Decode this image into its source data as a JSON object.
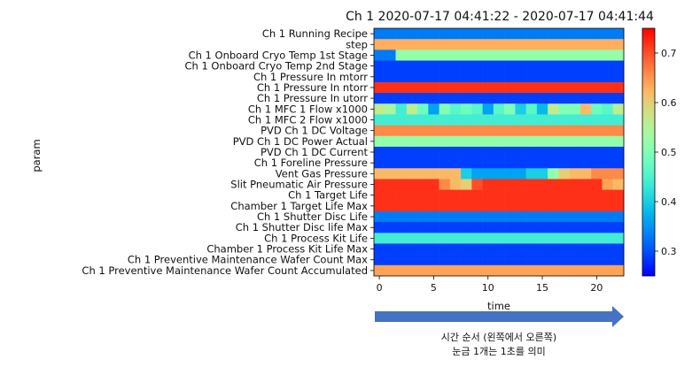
{
  "chart_data": {
    "type": "heatmap",
    "title": "Ch 1 2020-07-17 04:41:22 - 2020-07-17 04:41:44",
    "xlabel": "time",
    "ylabel": "param",
    "x_ticks": [
      0,
      5,
      10,
      15,
      20
    ],
    "x_range": [
      -0.5,
      22.5
    ],
    "colorbar": {
      "colormap": "rainbow",
      "range": [
        0.25,
        0.75
      ],
      "ticks": [
        0.3,
        0.4,
        0.5,
        0.6,
        0.7
      ]
    },
    "rows": [
      "Ch 1 Running Recipe",
      "step",
      "Ch 1 Onboard Cryo Temp 1st Stage",
      "Ch 1 Onboard Cryo Temp 2nd Stage",
      "Ch 1 Pressure In mtorr",
      "Ch 1 Pressure In ntorr",
      "Ch 1 Pressure In utorr",
      "Ch 1 MFC 1 Flow x1000",
      "Ch 1 MFC 2 Flow x1000",
      "PVD Ch 1 DC Voltage",
      "PVD Ch 1 DC Power Actual",
      "PVD Ch 1 DC Current",
      "Ch 1 Foreline Pressure",
      "Vent Gas Pressure",
      "Slit Pneumatic Air Pressure",
      "Ch 1 Target Life",
      "Chamber 1 Target Life Max",
      "Ch 1 Shutter Disc Life",
      "Ch 1 Shutter Disc life Max",
      "Ch 1 Process Kit Life",
      "Chamber 1 Process Kit Life Max",
      "Ch 1 Preventive Maintenance Wafer Count Max",
      "Ch 1 Preventive Maintenance Wafer Count Accumulated"
    ],
    "values": [
      [
        0.33,
        0.33,
        0.33,
        0.33,
        0.33,
        0.33,
        0.33,
        0.33,
        0.33,
        0.33,
        0.33,
        0.33,
        0.33,
        0.33,
        0.33,
        0.33,
        0.33,
        0.33,
        0.33,
        0.33,
        0.33,
        0.33,
        0.33
      ],
      [
        0.63,
        0.63,
        0.63,
        0.63,
        0.63,
        0.63,
        0.63,
        0.63,
        0.63,
        0.63,
        0.63,
        0.63,
        0.63,
        0.63,
        0.63,
        0.63,
        0.63,
        0.63,
        0.63,
        0.63,
        0.63,
        0.63,
        0.63
      ],
      [
        0.33,
        0.33,
        0.52,
        0.52,
        0.52,
        0.52,
        0.52,
        0.52,
        0.52,
        0.52,
        0.52,
        0.52,
        0.52,
        0.52,
        0.52,
        0.52,
        0.52,
        0.52,
        0.52,
        0.52,
        0.52,
        0.52,
        0.52
      ],
      [
        0.29,
        0.29,
        0.29,
        0.29,
        0.29,
        0.29,
        0.29,
        0.29,
        0.29,
        0.29,
        0.29,
        0.29,
        0.29,
        0.29,
        0.29,
        0.29,
        0.29,
        0.29,
        0.29,
        0.29,
        0.29,
        0.29,
        0.29
      ],
      [
        0.29,
        0.29,
        0.29,
        0.29,
        0.29,
        0.29,
        0.29,
        0.29,
        0.29,
        0.29,
        0.29,
        0.29,
        0.29,
        0.29,
        0.29,
        0.29,
        0.29,
        0.29,
        0.29,
        0.29,
        0.29,
        0.29,
        0.29
      ],
      [
        0.72,
        0.72,
        0.72,
        0.72,
        0.72,
        0.72,
        0.72,
        0.72,
        0.72,
        0.72,
        0.72,
        0.72,
        0.72,
        0.72,
        0.72,
        0.72,
        0.72,
        0.72,
        0.72,
        0.72,
        0.72,
        0.72,
        0.72
      ],
      [
        0.29,
        0.29,
        0.29,
        0.29,
        0.29,
        0.29,
        0.29,
        0.29,
        0.29,
        0.29,
        0.29,
        0.29,
        0.29,
        0.29,
        0.29,
        0.29,
        0.29,
        0.29,
        0.29,
        0.29,
        0.29,
        0.29,
        0.29
      ],
      [
        0.56,
        0.54,
        0.44,
        0.56,
        0.48,
        0.36,
        0.5,
        0.46,
        0.48,
        0.46,
        0.36,
        0.46,
        0.5,
        0.4,
        0.46,
        0.38,
        0.56,
        0.5,
        0.5,
        0.62,
        0.48,
        0.46,
        0.56
      ],
      [
        0.44,
        0.44,
        0.44,
        0.44,
        0.44,
        0.44,
        0.44,
        0.44,
        0.44,
        0.44,
        0.44,
        0.44,
        0.44,
        0.44,
        0.44,
        0.44,
        0.44,
        0.44,
        0.44,
        0.44,
        0.44,
        0.44,
        0.44
      ],
      [
        0.66,
        0.66,
        0.66,
        0.66,
        0.66,
        0.66,
        0.66,
        0.66,
        0.66,
        0.66,
        0.66,
        0.66,
        0.66,
        0.66,
        0.66,
        0.66,
        0.66,
        0.66,
        0.66,
        0.66,
        0.66,
        0.66,
        0.66
      ],
      [
        0.52,
        0.52,
        0.52,
        0.52,
        0.52,
        0.52,
        0.52,
        0.52,
        0.52,
        0.52,
        0.52,
        0.52,
        0.52,
        0.52,
        0.52,
        0.52,
        0.52,
        0.52,
        0.52,
        0.52,
        0.52,
        0.52,
        0.52
      ],
      [
        0.29,
        0.29,
        0.29,
        0.29,
        0.29,
        0.29,
        0.29,
        0.29,
        0.29,
        0.29,
        0.29,
        0.29,
        0.29,
        0.29,
        0.29,
        0.29,
        0.29,
        0.29,
        0.29,
        0.29,
        0.29,
        0.29,
        0.29
      ],
      [
        0.29,
        0.29,
        0.29,
        0.29,
        0.29,
        0.29,
        0.29,
        0.29,
        0.29,
        0.29,
        0.29,
        0.29,
        0.29,
        0.29,
        0.29,
        0.29,
        0.29,
        0.29,
        0.29,
        0.29,
        0.29,
        0.29,
        0.29
      ],
      [
        0.62,
        0.62,
        0.62,
        0.62,
        0.62,
        0.62,
        0.62,
        0.62,
        0.4,
        0.36,
        0.36,
        0.36,
        0.36,
        0.36,
        0.4,
        0.4,
        0.52,
        0.6,
        0.62,
        0.62,
        0.66,
        0.66,
        0.66
      ],
      [
        0.72,
        0.72,
        0.72,
        0.72,
        0.72,
        0.72,
        0.66,
        0.62,
        0.6,
        0.7,
        0.72,
        0.72,
        0.72,
        0.72,
        0.72,
        0.72,
        0.72,
        0.72,
        0.72,
        0.72,
        0.72,
        0.64,
        0.62
      ],
      [
        0.72,
        0.72,
        0.72,
        0.72,
        0.72,
        0.72,
        0.72,
        0.72,
        0.72,
        0.72,
        0.72,
        0.72,
        0.72,
        0.72,
        0.72,
        0.72,
        0.72,
        0.72,
        0.72,
        0.72,
        0.72,
        0.72,
        0.72
      ],
      [
        0.72,
        0.72,
        0.72,
        0.72,
        0.72,
        0.72,
        0.72,
        0.72,
        0.72,
        0.72,
        0.72,
        0.72,
        0.72,
        0.72,
        0.72,
        0.72,
        0.72,
        0.72,
        0.72,
        0.72,
        0.72,
        0.72,
        0.72
      ],
      [
        0.33,
        0.33,
        0.33,
        0.33,
        0.33,
        0.33,
        0.33,
        0.33,
        0.33,
        0.33,
        0.33,
        0.33,
        0.33,
        0.33,
        0.33,
        0.33,
        0.33,
        0.33,
        0.33,
        0.33,
        0.33,
        0.33,
        0.33
      ],
      [
        0.29,
        0.29,
        0.29,
        0.29,
        0.29,
        0.29,
        0.29,
        0.29,
        0.29,
        0.29,
        0.29,
        0.29,
        0.29,
        0.29,
        0.29,
        0.29,
        0.29,
        0.29,
        0.29,
        0.29,
        0.29,
        0.29,
        0.29
      ],
      [
        0.44,
        0.44,
        0.44,
        0.44,
        0.44,
        0.44,
        0.44,
        0.44,
        0.44,
        0.44,
        0.44,
        0.44,
        0.44,
        0.44,
        0.44,
        0.44,
        0.44,
        0.44,
        0.44,
        0.44,
        0.44,
        0.44,
        0.44
      ],
      [
        0.29,
        0.29,
        0.29,
        0.29,
        0.29,
        0.29,
        0.29,
        0.29,
        0.29,
        0.29,
        0.29,
        0.29,
        0.29,
        0.29,
        0.29,
        0.29,
        0.29,
        0.29,
        0.29,
        0.29,
        0.29,
        0.29,
        0.29
      ],
      [
        0.29,
        0.29,
        0.29,
        0.29,
        0.29,
        0.29,
        0.29,
        0.29,
        0.29,
        0.29,
        0.29,
        0.29,
        0.29,
        0.29,
        0.29,
        0.29,
        0.29,
        0.29,
        0.29,
        0.29,
        0.29,
        0.29,
        0.29
      ],
      [
        0.64,
        0.64,
        0.64,
        0.64,
        0.64,
        0.64,
        0.64,
        0.64,
        0.64,
        0.64,
        0.64,
        0.64,
        0.64,
        0.64,
        0.64,
        0.64,
        0.64,
        0.64,
        0.64,
        0.64,
        0.64,
        0.64,
        0.64
      ]
    ]
  },
  "annotation": {
    "arrow_color": "#4472c4",
    "line1": "시간 순서 (왼쪽에서 오른쪽)",
    "line2": "눈금 1개는 1초를 의미"
  }
}
